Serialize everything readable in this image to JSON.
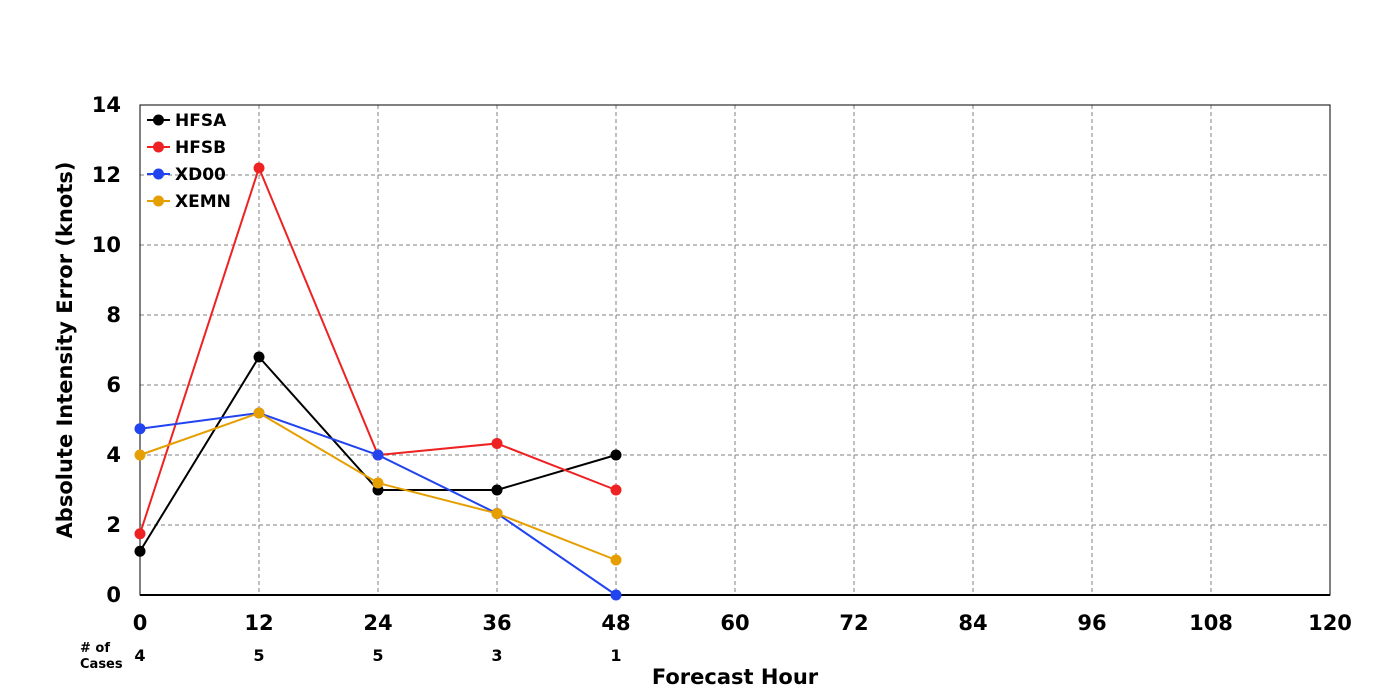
{
  "chart_data": {
    "type": "line",
    "title": "",
    "xlabel": "Forecast Hour",
    "ylabel": "Absolute Intensity Error (knots)",
    "xlim": [
      0,
      120
    ],
    "ylim": [
      0,
      14
    ],
    "x_ticks": [
      "0",
      "12",
      "24",
      "36",
      "48",
      "60",
      "72",
      "84",
      "96",
      "108",
      "120"
    ],
    "y_ticks": [
      "0",
      "2",
      "4",
      "6",
      "8",
      "10",
      "12",
      "14"
    ],
    "grid": true,
    "legend_position": "top-left",
    "cases_label_line1": "# of",
    "cases_label_line2": "Cases",
    "cases": [
      {
        "x": 0,
        "n": "4"
      },
      {
        "x": 12,
        "n": "5"
      },
      {
        "x": 24,
        "n": "5"
      },
      {
        "x": 36,
        "n": "3"
      },
      {
        "x": 48,
        "n": "1"
      }
    ],
    "series": [
      {
        "name": "HFSA",
        "color": "#000000",
        "x": [
          0,
          12,
          24,
          36,
          48
        ],
        "values": [
          1.25,
          6.8,
          3.0,
          3.0,
          4.0
        ]
      },
      {
        "name": "HFSB",
        "color": "#ee2222",
        "x": [
          0,
          12,
          24,
          36,
          48
        ],
        "values": [
          1.75,
          12.2,
          4.0,
          4.33,
          3.0
        ]
      },
      {
        "name": "XD00",
        "color": "#2244ee",
        "x": [
          0,
          12,
          24,
          36,
          48
        ],
        "values": [
          4.75,
          5.2,
          4.0,
          2.33,
          0.0
        ]
      },
      {
        "name": "XEMN",
        "color": "#e69f00",
        "x": [
          0,
          12,
          24,
          36,
          48
        ],
        "values": [
          4.0,
          5.2,
          3.2,
          2.33,
          1.0
        ]
      }
    ]
  }
}
